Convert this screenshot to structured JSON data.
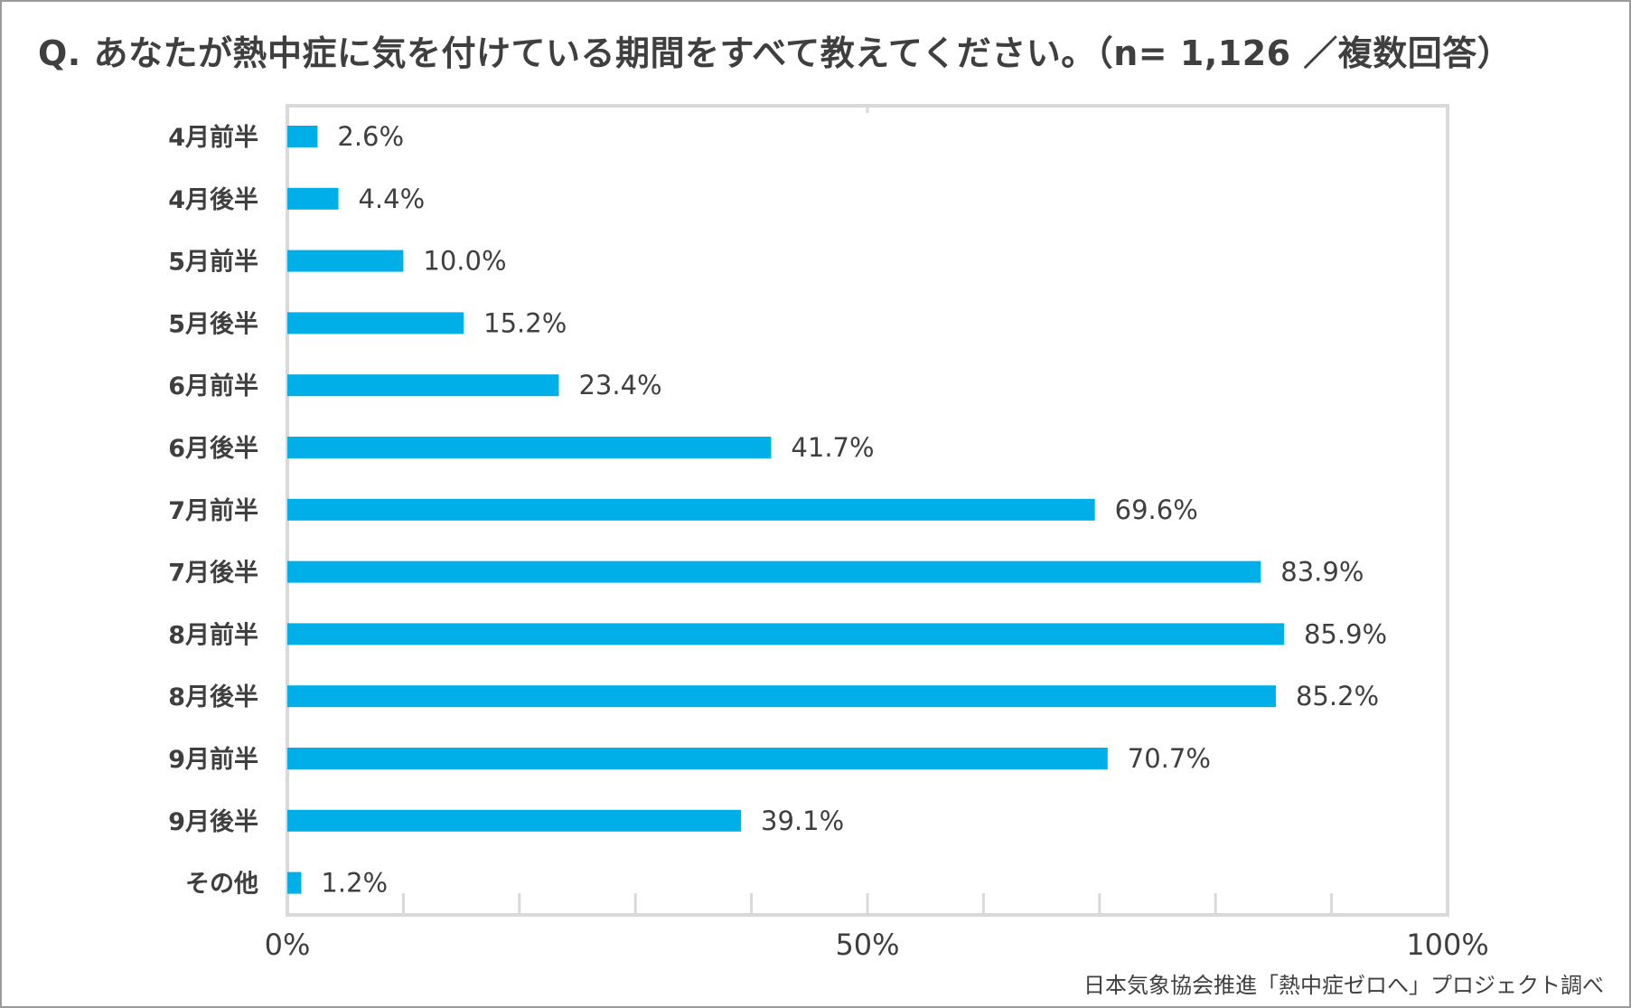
{
  "title": "Q. あなたが熱中症に気を付けている期間をすべて教えてください。（n= 1,126 ／複数回答）",
  "source": "日本気象協会推進「熱中症ゼロへ」プロジェクト調べ",
  "colors": {
    "bar": "#00aee8",
    "frame": "#d9d9d9",
    "text": "#3f3f3f"
  },
  "chart_data": {
    "type": "bar",
    "orientation": "horizontal",
    "categories": [
      "4月前半",
      "4月後半",
      "5月前半",
      "5月後半",
      "6月前半",
      "6月後半",
      "7月前半",
      "7月後半",
      "8月前半",
      "8月後半",
      "9月前半",
      "9月後半",
      "その他"
    ],
    "values": [
      2.6,
      4.4,
      10.0,
      15.2,
      23.4,
      41.7,
      69.6,
      83.9,
      85.9,
      85.2,
      70.7,
      39.1,
      1.2
    ],
    "value_labels": [
      "2.6%",
      "4.4%",
      "10.0%",
      "15.2%",
      "23.4%",
      "41.7%",
      "69.6%",
      "83.9%",
      "85.9%",
      "85.2%",
      "70.7%",
      "39.1%",
      "1.2%"
    ],
    "xlim": [
      0,
      100
    ],
    "xticks": [
      0,
      50,
      100
    ],
    "xtick_labels": [
      "0%",
      "50%",
      "100%"
    ],
    "minor_tick_step": 10,
    "grid": false,
    "legend": "none"
  }
}
